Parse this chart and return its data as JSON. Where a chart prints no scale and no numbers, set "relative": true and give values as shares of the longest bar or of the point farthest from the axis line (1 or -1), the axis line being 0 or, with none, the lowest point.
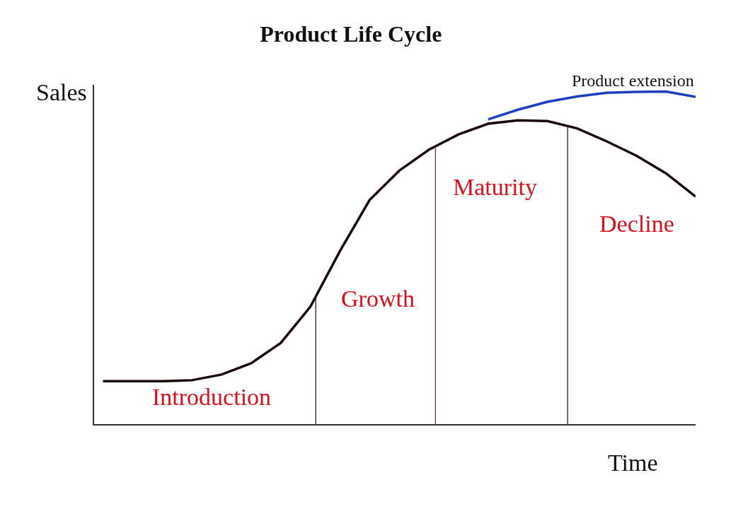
{
  "chart_data": {
    "type": "line",
    "title": "Product Life Cycle",
    "xlabel": "Time",
    "ylabel": "Sales",
    "relative": true,
    "legend": false,
    "marker": "none",
    "line_style": "solid",
    "categories": [
      null,
      null,
      null,
      null,
      null,
      null,
      null,
      null,
      null,
      null,
      null,
      null,
      null,
      null,
      null,
      null,
      null,
      null,
      null,
      null,
      null
    ],
    "series": [
      {
        "color": "#1a0808",
        "values": [
          0.129,
          0.129,
          0.129,
          0.132,
          0.149,
          0.183,
          0.244,
          0.353,
          0.521,
          0.674,
          0.762,
          0.825,
          0.871,
          0.903,
          0.913,
          0.911,
          0.889,
          0.85,
          0.807,
          0.754,
          0.684
        ]
      },
      {
        "name": "Product extension",
        "color": "#1f3fbf",
        "values": [
          null,
          null,
          null,
          null,
          null,
          null,
          null,
          null,
          null,
          null,
          null,
          null,
          null,
          0.916,
          0.945,
          0.969,
          0.985,
          0.996,
          0.999,
          1.0,
          0.984
        ]
      }
    ],
    "annotations": [
      "Introduction",
      "Growth",
      "Maturity",
      "Decline"
    ]
  }
}
